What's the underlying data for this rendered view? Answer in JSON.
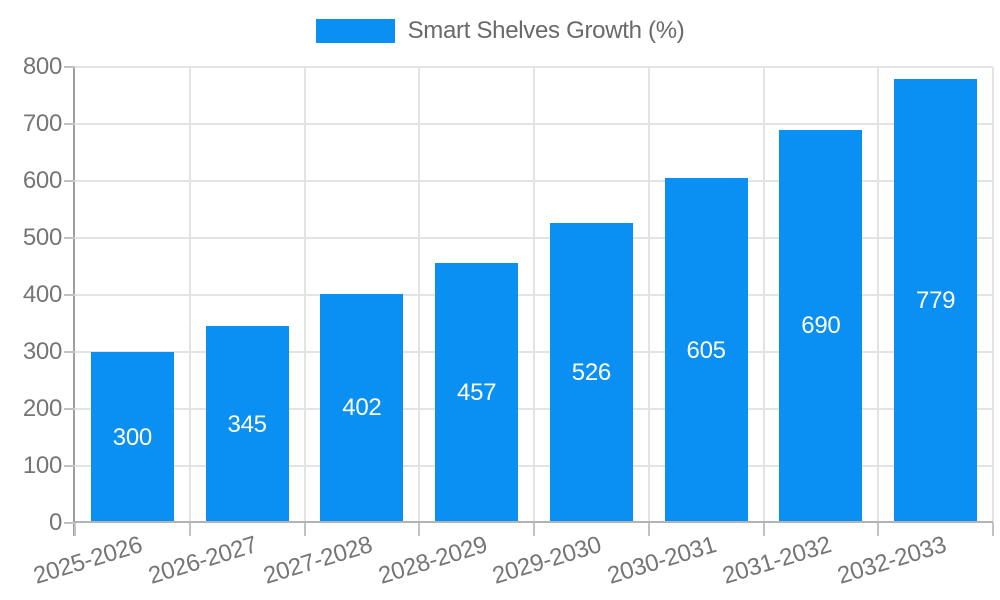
{
  "chart_data": {
    "type": "bar",
    "title": "",
    "legend_entries": [
      "Smart Shelves Growth (%)"
    ],
    "legend_position": "top-center",
    "categories": [
      "2025-2026",
      "2026-2027",
      "2027-2028",
      "2028-2029",
      "2029-2030",
      "2030-2031",
      "2031-2032",
      "2032-2033"
    ],
    "series": [
      {
        "name": "Smart Shelves Growth (%)",
        "values": [
          300,
          345,
          402,
          457,
          526,
          605,
          690,
          779
        ]
      }
    ],
    "xlabel": "",
    "ylabel": "",
    "ylim": [
      0,
      800
    ],
    "yticks": [
      0,
      100,
      200,
      300,
      400,
      500,
      600,
      700,
      800
    ],
    "grid": true,
    "value_label_position": "inside-center",
    "x_label_rotation_deg": -17
  },
  "colors": {
    "background": "#ffffff",
    "bar": "#0a8ff2",
    "gridline": "#e3e3e3",
    "y_axis_line": "#9e9e9e",
    "x_axis_line": "#b3b3b3",
    "tick_mark": "#c2c2c2",
    "tick_label_text": "#757575",
    "legend_text": "#696969",
    "value_label_text": "#ffffff"
  }
}
